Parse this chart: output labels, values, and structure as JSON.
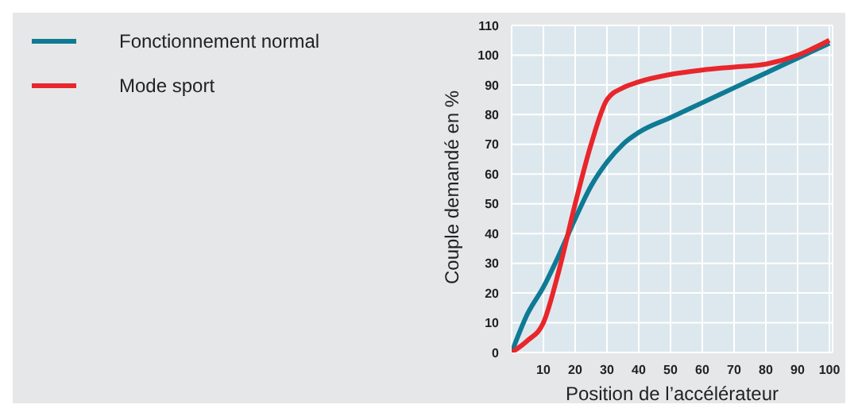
{
  "chart_data": {
    "type": "line",
    "xlabel": "Position de l’accélérateur",
    "ylabel": "Couple demandé en %",
    "x": [
      0,
      5,
      10,
      15,
      20,
      25,
      30,
      35,
      40,
      50,
      60,
      70,
      80,
      90,
      100
    ],
    "series": [
      {
        "name": "Fonctionnement normal",
        "color": "#0f7a94",
        "values": [
          0,
          13,
          22,
          33,
          45,
          56,
          64,
          70,
          74,
          79,
          84,
          89,
          94,
          99,
          104
        ]
      },
      {
        "name": "Mode sport",
        "color": "#e8262b",
        "values": [
          0,
          4,
          10,
          28,
          50,
          70,
          85,
          89,
          91,
          93.5,
          95,
          96,
          97,
          100,
          105
        ]
      }
    ],
    "xlim": [
      0,
      101
    ],
    "xticks": [
      10,
      20,
      30,
      40,
      50,
      60,
      70,
      80,
      90,
      100
    ],
    "ylim": [
      0,
      110
    ],
    "yticks": [
      0,
      10,
      20,
      30,
      40,
      50,
      60,
      70,
      80,
      90,
      100,
      110
    ],
    "grid": true,
    "legend": "left",
    "marker": "none",
    "line_style": "solid"
  }
}
